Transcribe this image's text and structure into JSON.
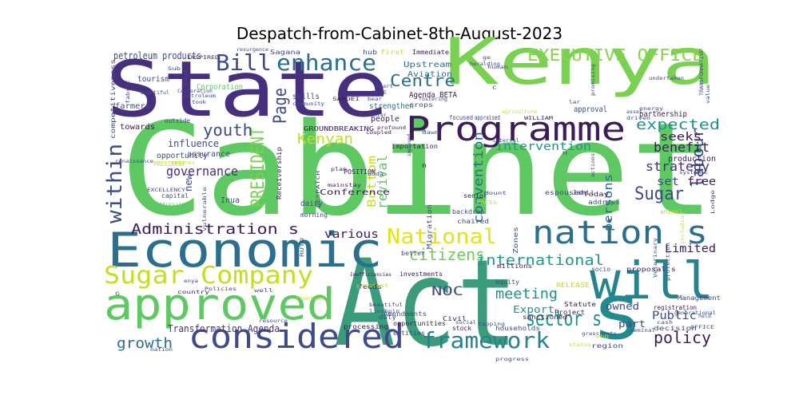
{
  "title": "Despatch-from-Cabinet-8th-August-2023",
  "words": [
    {
      "text": "Cabinet",
      "color": "#5ec962"
    },
    {
      "text": "Act",
      "color": "#3b9c7c"
    },
    {
      "text": "State",
      "color": "#46307e"
    },
    {
      "text": "Kenya",
      "color": "#7ad151"
    },
    {
      "text": "Economic",
      "color": "#2a6f8d"
    },
    {
      "text": "approved",
      "color": "#5ec962"
    },
    {
      "text": "will",
      "color": "#25838e"
    },
    {
      "text": "s",
      "color": "#23898e"
    },
    {
      "text": "Programme",
      "color": "#3b1c58"
    },
    {
      "text": "considered",
      "color": "#3e4a89"
    },
    {
      "text": "nation s",
      "color": "#2a6f8d"
    },
    {
      "text": "Sugar Company",
      "color": "#c2df23"
    },
    {
      "text": "framework",
      "color": "#25838e"
    },
    {
      "text": "National",
      "color": "#e2e418"
    },
    {
      "text": "Bill",
      "color": "#3e4a89"
    },
    {
      "text": "enhance",
      "color": "#2a6f8d"
    },
    {
      "text": "EXECUTIVE OFFICE",
      "color": "#86d549"
    },
    {
      "text": "sector s",
      "color": "#21918c"
    },
    {
      "text": "within",
      "color": "#3e4a89"
    },
    {
      "text": "Administration s",
      "color": "#3b1c58"
    },
    {
      "text": "Page",
      "color": "#3e4a89"
    },
    {
      "text": "PRESIDENT",
      "color": "#7ad151"
    },
    {
      "text": "Centre",
      "color": "#2a6f8d"
    },
    {
      "text": "expected",
      "color": "#21918c"
    },
    {
      "text": "labour",
      "color": "#3e4a89"
    },
    {
      "text": "youth",
      "color": "#3e4a89"
    },
    {
      "text": "Kenyan",
      "color": "#bddf26"
    },
    {
      "text": "citizens",
      "color": "#6ece58"
    },
    {
      "text": "international",
      "color": "#1f988b"
    },
    {
      "text": "policy",
      "color": "#3b1c58"
    },
    {
      "text": "growth",
      "color": "#2a6f8d"
    },
    {
      "text": "Sugar",
      "color": "#3e4a89"
    },
    {
      "text": "meeting",
      "color": "#21918c"
    },
    {
      "text": "governance",
      "color": "#472a7a"
    },
    {
      "text": "intervention",
      "color": "#1f988b"
    },
    {
      "text": "benefit",
      "color": "#3b1c58"
    },
    {
      "text": "strategy",
      "color": "#46307e"
    },
    {
      "text": "Limited",
      "color": "#3b1c58"
    },
    {
      "text": "Public",
      "color": "#3e4a89"
    },
    {
      "text": "NOC",
      "color": "#3e4a89"
    },
    {
      "text": "Transformation Agenda",
      "color": "#46307e"
    },
    {
      "text": "revival",
      "color": "#5ec962"
    },
    {
      "text": "convention",
      "color": "#2a6f8d"
    },
    {
      "text": "persons",
      "color": "#2a6f8d"
    },
    {
      "text": "seeks",
      "color": "#3b1c58"
    },
    {
      "text": "free",
      "color": "#3b1c58"
    },
    {
      "text": "set",
      "color": "#3e4a89"
    },
    {
      "text": "various",
      "color": "#3b1c58"
    },
    {
      "text": "Bottom",
      "color": "#c2df23"
    },
    {
      "text": "owned",
      "color": "#3e4a89"
    },
    {
      "text": "part",
      "color": "#3e4a89"
    },
    {
      "text": "Export",
      "color": "#21918c"
    },
    {
      "text": "petroleum products",
      "color": "#3e4a89"
    },
    {
      "text": "influence",
      "color": "#3e4a89"
    },
    {
      "text": "new",
      "color": "#3e4a89"
    },
    {
      "text": "opportunity",
      "color": "#3e4a89"
    },
    {
      "text": "Agenda BETA",
      "color": "#3b1c58"
    },
    {
      "text": "Upstream",
      "color": "#2a6f8d"
    },
    {
      "text": "Aviation",
      "color": "#2a6f8d"
    },
    {
      "text": "Conference",
      "color": "#3b1c58"
    },
    {
      "text": "GROUNDBREAKING",
      "color": "#3b1c58"
    },
    {
      "text": "importation",
      "color": "#3b1c58"
    },
    {
      "text": "strengthen",
      "color": "#2a6f8d"
    },
    {
      "text": "focused",
      "color": "#3e4a89"
    },
    {
      "text": "appraised",
      "color": "#3e4a89"
    },
    {
      "text": "approval",
      "color": "#3e4a89"
    },
    {
      "text": "partnership",
      "color": "#3b1c58"
    },
    {
      "text": "production",
      "color": "#3b1c58"
    },
    {
      "text": "towards",
      "color": "#3b1c58"
    },
    {
      "text": "farmers",
      "color": "#3e4a89"
    },
    {
      "text": "tourism",
      "color": "#3e4a89"
    },
    {
      "text": "Corporation",
      "color": "#5ec962"
    },
    {
      "text": "competitiveness",
      "color": "#3e4a89"
    },
    {
      "text": "skills",
      "color": "#3e4a89"
    },
    {
      "text": "people",
      "color": "#3b1c58"
    },
    {
      "text": "assurance",
      "color": "#3e4a89"
    },
    {
      "text": "PRESIDENT",
      "color": "#c2df23"
    },
    {
      "text": "outside",
      "color": "#3e4a89"
    },
    {
      "text": "Inua",
      "color": "#3e4a89"
    },
    {
      "text": "dairy",
      "color": "#3e4a89"
    },
    {
      "text": "morning",
      "color": "#3e4a89"
    },
    {
      "text": "Receivership",
      "color": "#3b1c58"
    },
    {
      "text": "POSITION",
      "color": "#3b1c58"
    },
    {
      "text": "investments",
      "color": "#3b1c58"
    },
    {
      "text": "Amendments",
      "color": "#3e4a89"
    },
    {
      "text": "sanctioned",
      "color": "#3b1c58"
    },
    {
      "text": "equity",
      "color": "#3e4a89"
    },
    {
      "text": "Zones",
      "color": "#3e4a89"
    },
    {
      "text": "Project",
      "color": "#3b1c58"
    },
    {
      "text": "proposal s",
      "color": "#3b1c58"
    },
    {
      "text": "registration",
      "color": "#3b1c58"
    },
    {
      "text": "Management",
      "color": "#3e4a89"
    },
    {
      "text": "Statute",
      "color": "#3b1c58"
    },
    {
      "text": "opportunities",
      "color": "#3b1c58"
    },
    {
      "text": "entities",
      "color": "#3e4a89"
    },
    {
      "text": "Civil",
      "color": "#3b1c58"
    },
    {
      "text": "households",
      "color": "#3e4a89"
    },
    {
      "text": "processing",
      "color": "#3b1c58"
    },
    {
      "text": "duty",
      "color": "#3e4a89"
    },
    {
      "text": "stock",
      "color": "#3b1c58"
    },
    {
      "text": "region",
      "color": "#3e4a89"
    },
    {
      "text": "decision",
      "color": "#3e4a89"
    },
    {
      "text": "socio",
      "color": "#3e4a89"
    },
    {
      "text": "address",
      "color": "#3e4a89"
    },
    {
      "text": "Today",
      "color": "#3b1c58"
    },
    {
      "text": "espoused",
      "color": "#3e4a89"
    },
    {
      "text": "senior",
      "color": "#3b1c58"
    },
    {
      "text": "chaired",
      "color": "#3e4a89"
    },
    {
      "text": "better",
      "color": "#3e4a89"
    },
    {
      "text": "Migration",
      "color": "#3e4a89"
    },
    {
      "text": "backdrop",
      "color": "#3e4a89"
    },
    {
      "text": "feeds",
      "color": "#3b1c58"
    },
    {
      "text": "millions",
      "color": "#3b1c58"
    },
    {
      "text": "Sagana",
      "color": "#3e4a89"
    },
    {
      "text": "hub",
      "color": "#3e4a89"
    },
    {
      "text": "first",
      "color": "#c2df23"
    },
    {
      "text": "Immediate",
      "color": "#3b1c58"
    },
    {
      "text": "crops",
      "color": "#3e4a89"
    },
    {
      "text": "WILLIAM",
      "color": "#3b1c58"
    },
    {
      "text": "Jamii",
      "color": "#3e4a89"
    },
    {
      "text": "capital",
      "color": "#3e4a89"
    },
    {
      "text": "EXCELLENCY",
      "color": "#3e4a89"
    },
    {
      "text": "addressing",
      "color": "#5ec962"
    },
    {
      "text": "vulnerable",
      "color": "#3e4a89"
    },
    {
      "text": "RELEASE",
      "color": "#c2df23"
    },
    {
      "text": "animal",
      "color": "#c2df23"
    },
    {
      "text": "cash",
      "color": "#3e4a89"
    },
    {
      "text": "held",
      "color": "#3e4a89"
    },
    {
      "text": "OFFICE",
      "color": "#3e4a89"
    },
    {
      "text": "status",
      "color": "#c2df23"
    },
    {
      "text": "seminal",
      "color": "#3e4a89"
    },
    {
      "text": "grassroots",
      "color": "#3e4a89"
    },
    {
      "text": "PhD",
      "color": "#c2df23"
    },
    {
      "text": "country",
      "color": "#3b1c58"
    },
    {
      "text": "Policies",
      "color": "#3e4a89"
    },
    {
      "text": "well",
      "color": "#3e4a89"
    },
    {
      "text": "frontier",
      "color": "#c2df23"
    },
    {
      "text": "beautiful",
      "color": "#3e4a89"
    },
    {
      "text": "linchpin",
      "color": "#3e4a89"
    },
    {
      "text": "coupled",
      "color": "#3b1c58"
    },
    {
      "text": "social",
      "color": "#3e4a89"
    },
    {
      "text": "resource",
      "color": "#3e4a89"
    },
    {
      "text": "nation",
      "color": "#3e4a89"
    },
    {
      "text": "RUTO",
      "color": "#3e4a89"
    },
    {
      "text": "enya",
      "color": "#3e4a89"
    },
    {
      "text": "Veterinary",
      "color": "#3e4a89"
    },
    {
      "text": "Lodge",
      "color": "#3e4a89"
    },
    {
      "text": "Mount",
      "color": "#3e4a89"
    },
    {
      "text": "actions",
      "color": "#3e4a89"
    },
    {
      "text": "driven",
      "color": "#3e4a89"
    },
    {
      "text": "energy",
      "color": "#3e4a89"
    },
    {
      "text": "systemic",
      "color": "#3e4a89"
    },
    {
      "text": "undertaken",
      "color": "#3e4a89"
    },
    {
      "text": "promising",
      "color": "#3e4a89"
    },
    {
      "text": "value",
      "color": "#3e4a89"
    },
    {
      "text": "TRANSFORMATIVE",
      "color": "#3e4a89"
    },
    {
      "text": "INSPIRED",
      "color": "#3b1c58"
    },
    {
      "text": "resurgence",
      "color": "#3e4a89"
    },
    {
      "text": "Sub",
      "color": "#3e4a89"
    },
    {
      "text": "bountiful",
      "color": "#3e4a89"
    },
    {
      "text": "fabric",
      "color": "#3e4a89"
    },
    {
      "text": "Corporation",
      "color": "#3e4a89"
    },
    {
      "text": "petroleum",
      "color": "#3e4a89"
    },
    {
      "text": "took",
      "color": "#3e4a89"
    },
    {
      "text": "geared",
      "color": "#3e4a89"
    },
    {
      "text": "community",
      "color": "#3e4a89"
    },
    {
      "text": "SAMOEI",
      "color": "#3b1c58"
    },
    {
      "text": "GIVE",
      "color": "#3e4a89"
    },
    {
      "text": "bear",
      "color": "#3e4a89"
    },
    {
      "text": "heart",
      "color": "#3e4a89"
    },
    {
      "text": "fostering",
      "color": "#3e4a89"
    },
    {
      "text": "heralding",
      "color": "#3e4a89"
    },
    {
      "text": "profound",
      "color": "#3b1c58"
    },
    {
      "text": "dawn",
      "color": "#3e4a89"
    },
    {
      "text": "plan",
      "color": "#3b1c58"
    },
    {
      "text": "Boda",
      "color": "#3e4a89"
    },
    {
      "text": "mainstay",
      "color": "#3b1c58"
    },
    {
      "text": "DESPATCH",
      "color": "#3e4a89"
    },
    {
      "text": "PRESS",
      "color": "#c2df23"
    },
    {
      "text": "Inefficiencies",
      "color": "#3b1c58"
    },
    {
      "text": "renaissance",
      "color": "#3e4a89"
    },
    {
      "text": "returns",
      "color": "#c2df23"
    },
    {
      "text": "inter",
      "color": "#3e4a89"
    },
    {
      "text": "progress",
      "color": "#3e4a89"
    },
    {
      "text": "greatest",
      "color": "#c2df23"
    },
    {
      "text": "tapping",
      "color": "#3e4a89"
    },
    {
      "text": "including",
      "color": "#c2df23"
    },
    {
      "text": "protection",
      "color": "#3e4a89"
    },
    {
      "text": "generational",
      "color": "#3e4a89"
    },
    {
      "text": "asset",
      "color": "#3e4a89"
    },
    {
      "text": "lar",
      "color": "#3e4a89"
    },
    {
      "text": "improved",
      "color": "#3e4a89"
    },
    {
      "text": "agriculture",
      "color": "#c2df23"
    },
    {
      "text": "internal",
      "color": "#3e4a89"
    },
    {
      "text": "ge",
      "color": "#3e4a89"
    },
    {
      "text": "C",
      "color": "#3e4a89"
    },
    {
      "text": "H",
      "color": "#3e4a89"
    },
    {
      "text": "n",
      "color": "#3b1c58"
    },
    {
      "text": "G",
      "color": "#3e4a89"
    },
    {
      "text": "human",
      "color": "#3e4a89"
    }
  ]
}
